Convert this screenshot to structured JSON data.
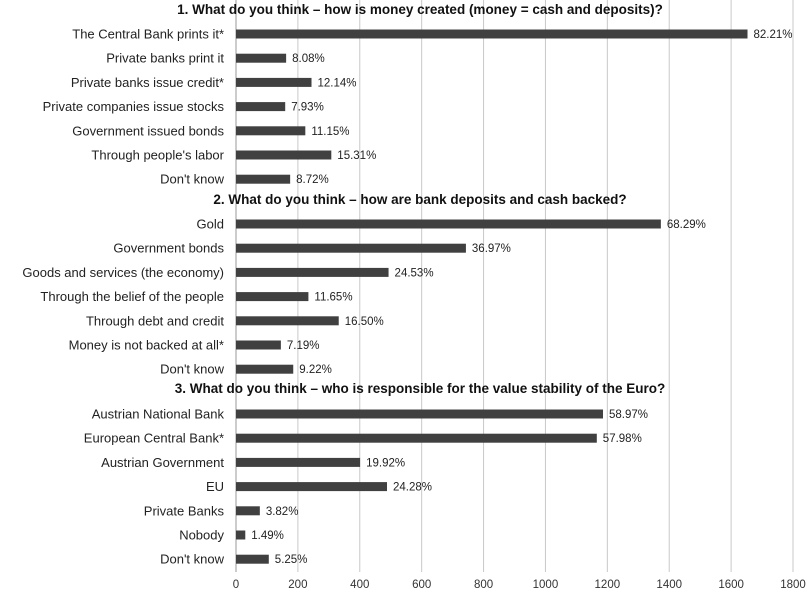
{
  "chart_data": {
    "type": "bar",
    "orientation": "horizontal",
    "xlim": [
      0,
      1800
    ],
    "xticks": [
      0,
      200,
      400,
      600,
      800,
      1000,
      1200,
      1400,
      1600,
      1800
    ],
    "grid": true,
    "bar_color": "#404040",
    "sections": [
      {
        "title": "1. What do you think – how is money created (money = cash and deposits)?",
        "categories": [
          "The Central Bank prints it*",
          "Private banks print it",
          "Private banks issue credit*",
          "Private companies issue stocks",
          "Government issued bonds",
          "Through people's labor",
          "Don't know"
        ],
        "values": [
          1653,
          162,
          244,
          159,
          224,
          308,
          175
        ],
        "labels": [
          "82.21%",
          "8.08%",
          "12.14%",
          "7.93%",
          "11.15%",
          "15.31%",
          "8.72%"
        ]
      },
      {
        "title": "2. What do you think – how are bank deposits and cash backed?",
        "categories": [
          "Gold",
          "Government bonds",
          "Goods and services (the economy)",
          "Through the belief of the people",
          "Through debt and credit",
          "Money is not backed at all*",
          "Don't know"
        ],
        "values": [
          1373,
          743,
          493,
          234,
          332,
          145,
          185
        ],
        "labels": [
          "68.29%",
          "36.97%",
          "24.53%",
          "11.65%",
          "16.50%",
          "7.19%",
          "9.22%"
        ]
      },
      {
        "title": "3. What do you think – who is responsible for the value stability of the Euro?",
        "categories": [
          "Austrian National Bank",
          "European Central Bank*",
          "Austrian Government",
          "EU",
          "Private Banks",
          "Nobody",
          "Don't know"
        ],
        "values": [
          1186,
          1166,
          401,
          488,
          77,
          30,
          106
        ],
        "labels": [
          "58.97%",
          "57.98%",
          "19.92%",
          "24.28%",
          "3.82%",
          "1.49%",
          "5.25%"
        ]
      }
    ]
  }
}
